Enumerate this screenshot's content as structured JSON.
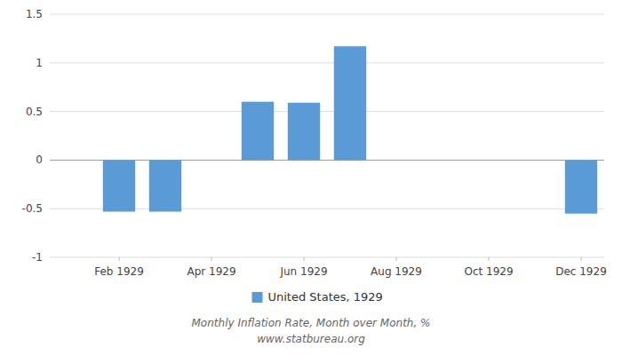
{
  "chart_data": {
    "type": "bar",
    "categories": [
      null,
      "Feb 1929",
      null,
      "Apr 1929",
      null,
      "Jun 1929",
      null,
      "Aug 1929",
      null,
      "Oct 1929",
      null,
      "Dec 1929"
    ],
    "series": [
      {
        "name": "United States, 1929",
        "color": "#5b9bd5",
        "values": [
          0.0,
          -0.53,
          -0.53,
          0.0,
          0.6,
          0.59,
          1.17,
          0.0,
          0.0,
          0.0,
          0.0,
          -0.55
        ]
      }
    ],
    "ylim": [
      -1.0,
      1.5
    ],
    "yticks": [
      -1.0,
      -0.5,
      0.0,
      0.5,
      1.0,
      1.5
    ],
    "grid": true,
    "legend": "bottom",
    "annotations": [
      "Monthly Inflation Rate, Month over Month, %",
      "www.statbureau.org"
    ]
  }
}
